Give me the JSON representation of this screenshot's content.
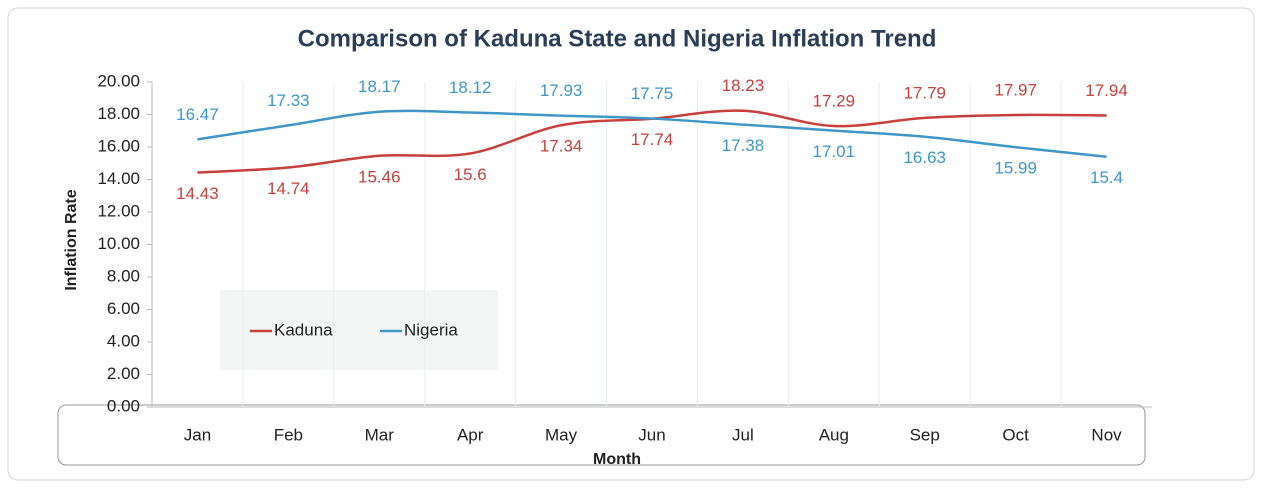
{
  "chart_data": {
    "type": "line",
    "title": "Comparison of Kaduna State and Nigeria Inflation Trend",
    "x_label": "Month",
    "y_label": "Inflation Rate",
    "categories": [
      "Jan",
      "Feb",
      "Mar",
      "Apr",
      "May",
      "Jun",
      "Jul",
      "Aug",
      "Sep",
      "Oct",
      "Nov"
    ],
    "series": [
      {
        "name": "Kaduna",
        "color": "#c6403d",
        "values": [
          14.43,
          14.74,
          15.46,
          15.6,
          17.34,
          17.74,
          18.23,
          17.29,
          17.79,
          17.97,
          17.94
        ]
      },
      {
        "name": "Nigeria",
        "color": "#3e97c6",
        "values": [
          16.47,
          17.33,
          18.17,
          18.12,
          17.93,
          17.75,
          17.38,
          17.01,
          16.63,
          15.99,
          15.4
        ]
      }
    ],
    "ylim": [
      0,
      20
    ],
    "yticks": [
      {
        "value": 0,
        "label": "0.00"
      },
      {
        "value": 2,
        "label": "2.00"
      },
      {
        "value": 4,
        "label": "4.00"
      },
      {
        "value": 6,
        "label": "6.00"
      },
      {
        "value": 8,
        "label": "8.00"
      },
      {
        "value": 10,
        "label": "10.00"
      },
      {
        "value": 12,
        "label": "12.00"
      },
      {
        "value": 14,
        "label": "14.00"
      },
      {
        "value": 16,
        "label": "16.00"
      },
      {
        "value": 18,
        "label": "18.00"
      },
      {
        "value": 20,
        "label": "20.00"
      }
    ],
    "legend": "lower left"
  }
}
